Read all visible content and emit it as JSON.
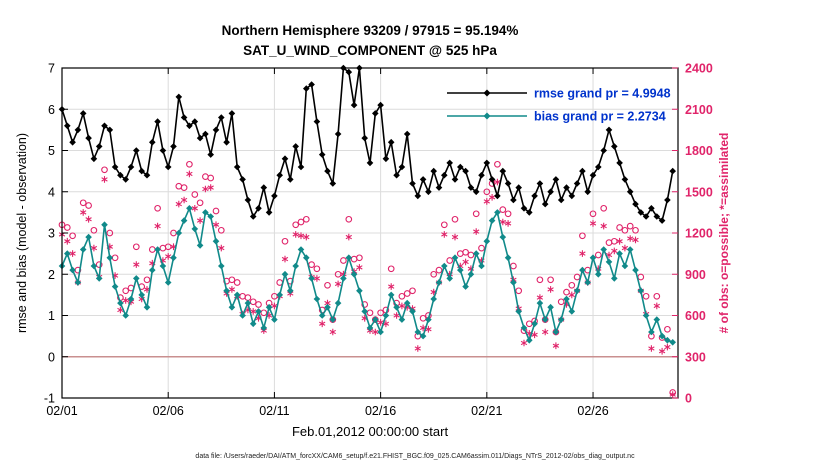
{
  "footer": {
    "datafile": "data file: /Users/raeder/DAI/ATM_forcXX/CAM6_setup/f.e21.FHIST_BGC.f09_025.CAM6assim.011/Diags_NTrS_2012-02/obs_diag_output.nc"
  },
  "chart_data": {
    "type": "line",
    "title": "Northern Hemisphere 93209 / 97915 = 95.194%",
    "subtitle": "SAT_U_WIND_COMPONENT @ 525 hPa",
    "xlabel": "Feb.01,2012 00:00:00 start",
    "ylabel_left": "rmse and bias (model - observation)",
    "ylabel_right": "# of obs: o=possible; *=assimilated",
    "xlim": [
      0,
      29
    ],
    "ylim_left": [
      -1,
      7
    ],
    "ylim_right": [
      0,
      2400
    ],
    "grid": true,
    "legend_position": "top-right-inside",
    "x": {
      "start_day": 0,
      "step_days": 0.25,
      "count": 116
    },
    "xticks": [
      {
        "day": 0,
        "label": "02/01"
      },
      {
        "day": 5,
        "label": "02/06"
      },
      {
        "day": 10,
        "label": "02/11"
      },
      {
        "day": 15,
        "label": "02/16"
      },
      {
        "day": 20,
        "label": "02/21"
      },
      {
        "day": 25,
        "label": "02/26"
      }
    ],
    "yticks_left": [
      -1,
      0,
      1,
      2,
      3,
      4,
      5,
      6,
      7
    ],
    "yticks_right": [
      0,
      300,
      600,
      900,
      1200,
      1500,
      1800,
      2100,
      2400
    ],
    "series": [
      {
        "name": "rmse",
        "legend": "rmse grand pr = 4.9948",
        "color": "#000000",
        "marker": "diamond",
        "axis": "left",
        "values": [
          6.0,
          5.6,
          5.2,
          5.5,
          5.9,
          5.3,
          4.8,
          5.1,
          5.6,
          5.5,
          4.6,
          4.4,
          4.3,
          4.6,
          5.0,
          4.5,
          4.4,
          5.2,
          5.7,
          5.0,
          4.6,
          5.1,
          6.3,
          5.8,
          5.6,
          5.7,
          5.3,
          5.4,
          4.9,
          5.5,
          5.8,
          5.2,
          5.9,
          4.6,
          4.3,
          3.8,
          3.4,
          3.6,
          4.1,
          3.5,
          3.9,
          4.4,
          4.8,
          4.3,
          5.1,
          4.6,
          6.5,
          6.6,
          5.7,
          4.9,
          4.5,
          4.2,
          5.4,
          7.0,
          6.9,
          6.1,
          7.0,
          5.3,
          4.7,
          5.9,
          6.1,
          4.8,
          5.2,
          4.4,
          4.6,
          5.4,
          4.2,
          3.9,
          4.3,
          4.0,
          4.5,
          4.1,
          4.4,
          4.7,
          4.3,
          4.6,
          4.5,
          4.1,
          4.0,
          4.4,
          4.7,
          4.3,
          3.9,
          4.5,
          4.2,
          3.8,
          4.1,
          3.6,
          3.5,
          3.9,
          4.2,
          3.7,
          4.0,
          4.3,
          3.8,
          4.1,
          3.9,
          4.2,
          4.5,
          4.0,
          4.4,
          4.6,
          5.0,
          5.5,
          5.1,
          4.7,
          4.3,
          4.0,
          3.7,
          3.5,
          3.4,
          3.6,
          3.4,
          3.3,
          3.8,
          4.5
        ]
      },
      {
        "name": "bias",
        "legend": "bias grand pr = 2.2734",
        "color": "#118a8a",
        "marker": "diamond",
        "axis": "left",
        "values": [
          2.2,
          2.5,
          2.1,
          1.8,
          2.6,
          2.9,
          2.2,
          1.9,
          3.2,
          2.4,
          1.7,
          1.3,
          1.0,
          1.4,
          1.9,
          1.5,
          1.2,
          2.1,
          2.6,
          2.2,
          1.8,
          2.4,
          3.0,
          3.3,
          3.6,
          3.1,
          2.7,
          3.5,
          3.4,
          2.8,
          2.2,
          1.6,
          1.2,
          1.5,
          1.0,
          1.3,
          0.8,
          1.1,
          0.7,
          1.2,
          0.9,
          1.5,
          2.0,
          1.6,
          2.2,
          2.6,
          2.4,
          1.9,
          1.4,
          1.0,
          1.2,
          0.9,
          1.3,
          1.9,
          2.4,
          2.0,
          1.6,
          1.1,
          0.7,
          0.9,
          0.6,
          1.0,
          1.5,
          1.2,
          0.9,
          1.3,
          1.1,
          0.6,
          0.5,
          0.9,
          1.4,
          1.8,
          2.2,
          1.9,
          2.4,
          2.1,
          1.7,
          2.0,
          2.5,
          2.2,
          2.8,
          3.3,
          3.5,
          2.9,
          2.4,
          1.8,
          1.1,
          0.7,
          0.4,
          0.8,
          1.3,
          0.9,
          1.2,
          0.6,
          0.9,
          1.4,
          1.1,
          1.6,
          2.1,
          1.8,
          2.4,
          2.0,
          2.6,
          2.3,
          1.9,
          2.5,
          2.2,
          2.6,
          2.1,
          1.6,
          1.0,
          0.6,
          0.9,
          0.5,
          0.4,
          0.35
        ]
      }
    ],
    "obs_counts": [
      {
        "name": "possible",
        "marker": "circle",
        "axis": "right",
        "values": [
          1260,
          1240,
          1180,
          930,
          1420,
          1400,
          1220,
          970,
          1660,
          1200,
          1020,
          730,
          780,
          800,
          1100,
          810,
          860,
          1080,
          1380,
          1090,
          1100,
          1200,
          1540,
          1530,
          1700,
          1480,
          1420,
          1610,
          1600,
          1360,
          1220,
          850,
          860,
          840,
          740,
          730,
          700,
          680,
          620,
          690,
          740,
          840,
          1140,
          850,
          1260,
          1280,
          1300,
          970,
          940,
          640,
          820,
          570,
          900,
          1000,
          1300,
          1010,
          1020,
          680,
          620,
          570,
          620,
          640,
          940,
          690,
          740,
          760,
          780,
          450,
          580,
          600,
          900,
          930,
          1260,
          1000,
          1300,
          1050,
          1060,
          1040,
          1340,
          1090,
          1500,
          1560,
          1700,
          1370,
          1340,
          960,
          780,
          490,
          540,
          560,
          860,
          570,
          860,
          480,
          700,
          770,
          820,
          880,
          1180,
          930,
          1340,
          1040,
          1380,
          1130,
          1140,
          1240,
          1220,
          1250,
          1220,
          880,
          740,
          450,
          740,
          440,
          500,
          40
        ]
      },
      {
        "name": "assimilated",
        "marker": "asterisk",
        "axis": "right",
        "values": [
          1190,
          1140,
          1050,
          840,
          1350,
          1300,
          1090,
          880,
          1590,
          1100,
          890,
          640,
          710,
          700,
          970,
          720,
          790,
          980,
          1250,
          1000,
          1030,
          1100,
          1410,
          1440,
          1630,
          1380,
          1290,
          1520,
          1530,
          1260,
          1090,
          760,
          790,
          740,
          610,
          640,
          630,
          580,
          490,
          600,
          670,
          740,
          1010,
          760,
          1190,
          1180,
          1170,
          880,
          870,
          540,
          690,
          480,
          830,
          900,
          1170,
          920,
          950,
          580,
          490,
          480,
          550,
          540,
          810,
          600,
          670,
          660,
          650,
          360,
          510,
          500,
          770,
          840,
          1190,
          900,
          1170,
          960,
          990,
          940,
          1210,
          1000,
          1430,
          1460,
          1570,
          1280,
          1270,
          860,
          650,
          400,
          470,
          460,
          730,
          480,
          790,
          380,
          570,
          680,
          750,
          780,
          1050,
          840,
          1270,
          940,
          1250,
          1040,
          1070,
          1140,
          1090,
          1160,
          1150,
          780,
          610,
          360,
          670,
          340,
          370,
          25
        ]
      }
    ],
    "colors": {
      "obs": "#e0246a",
      "zero_line": "#c98f8f",
      "grid": "#dcdcdc",
      "legend_text": "#0033cc",
      "axis": "#000000"
    }
  }
}
